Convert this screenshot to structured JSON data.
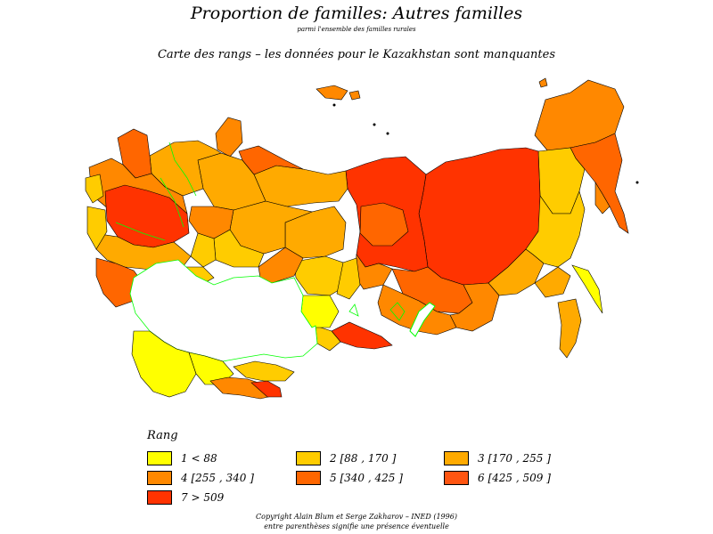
{
  "title": "Proportion de familles: Autres familles",
  "subtitle": "parmi l'ensemble des familles rurales",
  "map_title": "Carte des rangs – les données pour le Kazakhstan sont manquantes",
  "legend": {
    "title": "Rang",
    "items": [
      {
        "label": "1  <  88",
        "color": "#ffff00"
      },
      {
        "label": "2  [88 ,  170 ]",
        "color": "#ffcc00"
      },
      {
        "label": "3  [170 ,  255 ]",
        "color": "#ffaa00"
      },
      {
        "label": "4  [255 ,  340 ]",
        "color": "#ff8800"
      },
      {
        "label": "5  [340 ,  425 ]",
        "color": "#ff6600"
      },
      {
        "label": "6  [425 ,  509 ]",
        "color": "#ff5511"
      },
      {
        "label": "7  >  509",
        "color": "#ff3300"
      }
    ]
  },
  "copyright": "Copyright Alain Blum et Serge Zakharov – INED (1996)",
  "note": "entre parenthèses signifie une présence éventuelle",
  "colors": {
    "missing_region": "#ffffff",
    "border": "#000000",
    "lakes_and_rivers": "#00ff00"
  }
}
